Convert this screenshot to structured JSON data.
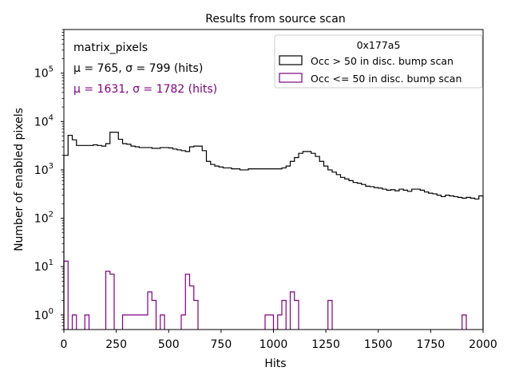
{
  "chart_data": {
    "type": "histogram",
    "title": "Results from source scan",
    "xlabel": "Hits",
    "ylabel": "Number of enabled pixels",
    "xlim": [
      0,
      2000
    ],
    "ylim": [
      0.5,
      800000
    ],
    "yscale": "log",
    "grid": false,
    "legend_placement": "top-right",
    "bin_width": 20,
    "x_ticks": [
      {
        "value": 0,
        "label": "0"
      },
      {
        "value": 250,
        "label": "250"
      },
      {
        "value": 500,
        "label": "500"
      },
      {
        "value": 750,
        "label": "750"
      },
      {
        "value": 1000,
        "label": "1000"
      },
      {
        "value": 1250,
        "label": "1250"
      },
      {
        "value": 1500,
        "label": "1500"
      },
      {
        "value": 1750,
        "label": "1750"
      },
      {
        "value": 2000,
        "label": "2000"
      }
    ],
    "y_ticks": [
      {
        "value": 1,
        "base": "10",
        "exp": "0"
      },
      {
        "value": 10,
        "base": "10",
        "exp": "1"
      },
      {
        "value": 100,
        "base": "10",
        "exp": "2"
      },
      {
        "value": 1000,
        "base": "10",
        "exp": "3"
      },
      {
        "value": 10000,
        "base": "10",
        "exp": "4"
      },
      {
        "value": 100000,
        "base": "10",
        "exp": "5"
      }
    ],
    "legend_title": "0x177a5",
    "annotations": [
      {
        "text": "matrix_pixels",
        "color": "#000000"
      },
      {
        "text": "μ = 765, σ = 799 (hits)",
        "color": "#000000"
      },
      {
        "text": "μ = 1631, σ = 1782 (hits)",
        "color": "#800080"
      }
    ],
    "series": [
      {
        "name": "Occ > 50 in disc. bump scan",
        "color": "#000000",
        "bin_edges": [
          0,
          20,
          40,
          60,
          80,
          100,
          120,
          140,
          160,
          180,
          200,
          220,
          240,
          260,
          280,
          300,
          320,
          340,
          360,
          380,
          400,
          420,
          440,
          460,
          480,
          500,
          520,
          540,
          560,
          580,
          600,
          620,
          640,
          660,
          680,
          700,
          720,
          740,
          760,
          780,
          800,
          820,
          840,
          860,
          880,
          900,
          920,
          940,
          960,
          980,
          1000,
          1020,
          1040,
          1060,
          1080,
          1100,
          1120,
          1140,
          1160,
          1180,
          1200,
          1220,
          1240,
          1260,
          1280,
          1300,
          1320,
          1340,
          1360,
          1380,
          1400,
          1420,
          1440,
          1460,
          1480,
          1500,
          1520,
          1540,
          1560,
          1580,
          1600,
          1620,
          1640,
          1660,
          1680,
          1700,
          1720,
          1740,
          1760,
          1780,
          1800,
          1820,
          1840,
          1860,
          1880,
          1900,
          1920,
          1940,
          1960,
          1980,
          2000
        ],
        "values": [
          2000,
          5200,
          4200,
          3200,
          3200,
          3200,
          3200,
          3300,
          3200,
          3100,
          3500,
          6000,
          6000,
          4300,
          3500,
          3400,
          3100,
          3000,
          2900,
          2900,
          2900,
          2800,
          2800,
          2900,
          2900,
          2850,
          2700,
          2600,
          2500,
          2400,
          3000,
          3100,
          3100,
          2500,
          1500,
          1300,
          1200,
          1150,
          1100,
          1100,
          1050,
          1050,
          1000,
          1000,
          1050,
          1050,
          1050,
          1050,
          1050,
          1050,
          1050,
          1050,
          1100,
          1200,
          1500,
          1800,
          2200,
          2400,
          2400,
          2200,
          1900,
          1500,
          1200,
          1000,
          900,
          800,
          700,
          650,
          600,
          550,
          530,
          500,
          460,
          450,
          430,
          420,
          400,
          380,
          390,
          370,
          400,
          380,
          360,
          400,
          400,
          380,
          350,
          330,
          320,
          300,
          280,
          300,
          290,
          280,
          270,
          260,
          270,
          260,
          250,
          290
        ]
      },
      {
        "name": "Occ <= 50 in disc. bump scan",
        "color": "#800080",
        "bin_edges": [
          0,
          20,
          40,
          60,
          80,
          100,
          120,
          140,
          160,
          180,
          200,
          220,
          240,
          260,
          280,
          300,
          320,
          340,
          360,
          380,
          400,
          420,
          440,
          460,
          480,
          500,
          520,
          540,
          560,
          580,
          600,
          620,
          640,
          660,
          680,
          700,
          720,
          740,
          760,
          780,
          800,
          820,
          840,
          860,
          880,
          900,
          920,
          940,
          960,
          980,
          1000,
          1020,
          1040,
          1060,
          1080,
          1100,
          1120,
          1140,
          1160,
          1180,
          1200,
          1220,
          1240,
          1260,
          1280,
          1300,
          1320,
          1340,
          1360,
          1380,
          1400,
          1420,
          1440,
          1460,
          1480,
          1500,
          1520,
          1540,
          1560,
          1580,
          1600,
          1620,
          1640,
          1660,
          1680,
          1700,
          1720,
          1740,
          1760,
          1780,
          1800,
          1820,
          1840,
          1860,
          1880,
          1900,
          1920,
          1940,
          1960,
          1980,
          2000
        ],
        "values": [
          13,
          0,
          1,
          0,
          0,
          1,
          0,
          0,
          0,
          0,
          8,
          7,
          0,
          0,
          1,
          1,
          1,
          1,
          1,
          1,
          3,
          2,
          0,
          1,
          0,
          0,
          0,
          0,
          1,
          7,
          4,
          2,
          0,
          0,
          0,
          0,
          0,
          0,
          0,
          0,
          0,
          0,
          0,
          0,
          0,
          0,
          0,
          0,
          1,
          1,
          0,
          1,
          2,
          0,
          3,
          2,
          0,
          0,
          0,
          0,
          0,
          0,
          0,
          2,
          0,
          0,
          0,
          0,
          0,
          0,
          0,
          0,
          0,
          0,
          0,
          0,
          0,
          0,
          0,
          0,
          0,
          0,
          0,
          0,
          0,
          0,
          0,
          0,
          0,
          0,
          0,
          0,
          0,
          0,
          0,
          1,
          0,
          0,
          0,
          0
        ]
      }
    ]
  }
}
